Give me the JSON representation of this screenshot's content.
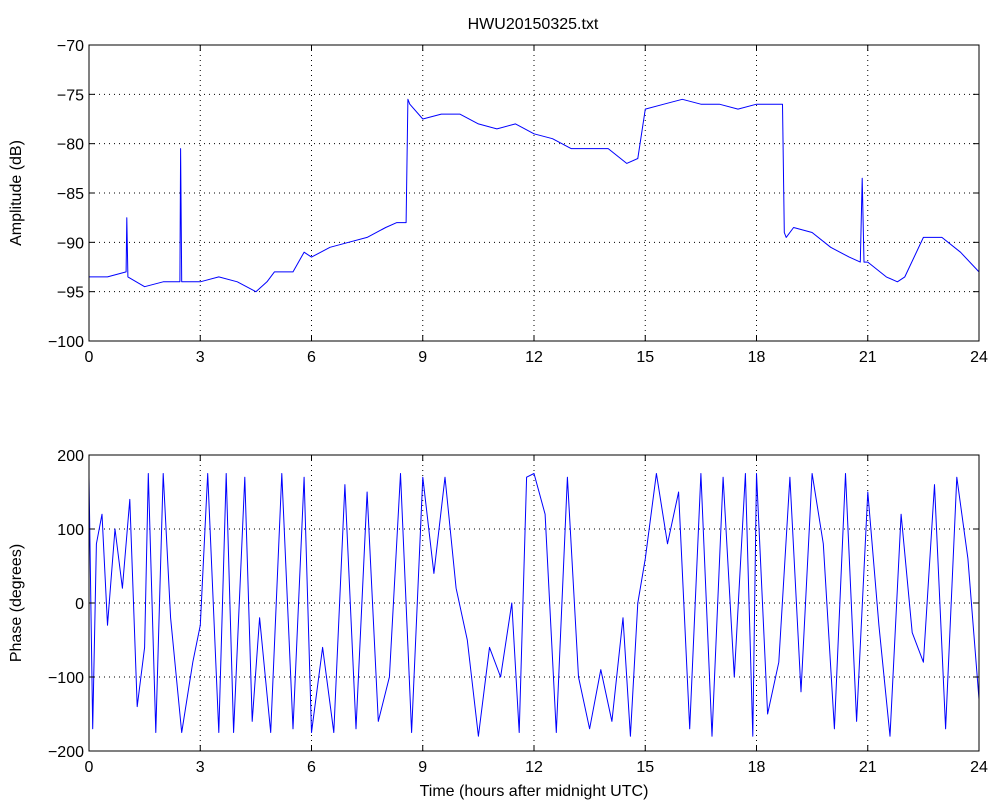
{
  "figure": {
    "title": "HWU20150325.txt"
  },
  "chart_data": [
    {
      "type": "line",
      "title": "HWU20150325.txt",
      "xlabel": "",
      "ylabel": "Amplitude (dB)",
      "xlim": [
        0,
        24
      ],
      "ylim": [
        -100,
        -70
      ],
      "xticks": [
        0,
        3,
        6,
        9,
        12,
        15,
        18,
        21,
        24
      ],
      "yticks": [
        -100,
        -95,
        -90,
        -85,
        -80,
        -75,
        -70
      ],
      "grid": true,
      "line_color": "#0000ff",
      "series": [
        {
          "x": [
            0,
            0.5,
            1,
            1.02,
            1.05,
            1.5,
            2,
            2.45,
            2.47,
            2.5,
            3,
            3.5,
            4,
            4.5,
            4.8,
            5,
            5.5,
            5.8,
            6,
            6.5,
            7,
            7.5,
            8,
            8.3,
            8.55,
            8.6,
            8.65,
            9,
            9.5,
            10,
            10.5,
            11,
            11.5,
            12,
            12.5,
            13,
            13.5,
            14,
            14.5,
            14.8,
            15,
            15.5,
            16,
            16.5,
            17,
            17.5,
            18,
            18.5,
            18.7,
            18.75,
            18.8,
            19,
            19.5,
            20,
            20.5,
            20.8,
            20.85,
            20.9,
            21,
            21.5,
            21.8,
            22,
            22.5,
            23,
            23.5,
            24
          ],
          "y": [
            -93.5,
            -93.5,
            -93,
            -87.5,
            -93.5,
            -94.5,
            -94,
            -94,
            -80.5,
            -94,
            -94,
            -93.5,
            -94,
            -95,
            -94,
            -93,
            -93,
            -91,
            -91.5,
            -90.5,
            -90,
            -89.5,
            -88.5,
            -88,
            -88,
            -75.5,
            -76,
            -77.5,
            -77,
            -77,
            -78,
            -78.5,
            -78,
            -79,
            -79.5,
            -80.5,
            -80.5,
            -80.5,
            -82,
            -81.5,
            -76.5,
            -76,
            -75.5,
            -76,
            -76,
            -76.5,
            -76,
            -76,
            -76,
            -89,
            -89.5,
            -88.5,
            -89,
            -90.5,
            -91.5,
            -92,
            -83.5,
            -92,
            -92,
            -93.5,
            -94,
            -93.5,
            -89.5,
            -89.5,
            -91,
            -93
          ]
        }
      ]
    },
    {
      "type": "line",
      "title": "",
      "xlabel": "Time (hours after midnight UTC)",
      "ylabel": "Phase (degrees)",
      "xlim": [
        0,
        24
      ],
      "ylim": [
        -200,
        200
      ],
      "xticks": [
        0,
        3,
        6,
        9,
        12,
        15,
        18,
        21,
        24
      ],
      "yticks": [
        -200,
        -100,
        0,
        100,
        200
      ],
      "grid": true,
      "line_color": "#0000ff",
      "series": [
        {
          "x": [
            0,
            0.1,
            0.2,
            0.35,
            0.5,
            0.7,
            0.9,
            1.1,
            1.3,
            1.5,
            1.6,
            1.8,
            2.0,
            2.2,
            2.5,
            2.8,
            3.0,
            3.2,
            3.5,
            3.7,
            3.9,
            4.2,
            4.4,
            4.6,
            4.9,
            5.2,
            5.5,
            5.8,
            6.0,
            6.3,
            6.6,
            6.9,
            7.2,
            7.5,
            7.8,
            8.1,
            8.4,
            8.7,
            9.0,
            9.3,
            9.6,
            9.9,
            10.2,
            10.5,
            10.8,
            11.1,
            11.4,
            11.6,
            11.8,
            12.0,
            12.3,
            12.6,
            12.9,
            13.2,
            13.5,
            13.8,
            14.1,
            14.4,
            14.6,
            14.8,
            15.0,
            15.3,
            15.6,
            15.9,
            16.2,
            16.5,
            16.8,
            17.1,
            17.4,
            17.7,
            17.9,
            18.0,
            18.3,
            18.6,
            18.9,
            19.2,
            19.5,
            19.8,
            20.1,
            20.4,
            20.7,
            21.0,
            21.3,
            21.6,
            21.9,
            22.2,
            22.5,
            22.8,
            23.1,
            23.4,
            23.7,
            24.0
          ],
          "y": [
            170,
            -170,
            80,
            120,
            -30,
            100,
            20,
            140,
            -140,
            -60,
            175,
            -175,
            175,
            -20,
            -175,
            -80,
            -30,
            175,
            -175,
            175,
            -175,
            170,
            -160,
            -20,
            -175,
            175,
            -170,
            170,
            -175,
            -60,
            -175,
            160,
            -170,
            150,
            -160,
            -100,
            175,
            -175,
            170,
            40,
            170,
            20,
            -50,
            -180,
            -60,
            -100,
            0,
            -175,
            170,
            175,
            120,
            -175,
            170,
            -100,
            -170,
            -90,
            -160,
            -20,
            -180,
            0,
            60,
            175,
            80,
            150,
            -170,
            175,
            -180,
            170,
            -100,
            175,
            -180,
            175,
            -150,
            -80,
            170,
            -120,
            175,
            80,
            -170,
            175,
            -160,
            150,
            -30,
            -180,
            120,
            -40,
            -80,
            160,
            -170,
            170,
            60,
            -130
          ]
        }
      ]
    }
  ]
}
